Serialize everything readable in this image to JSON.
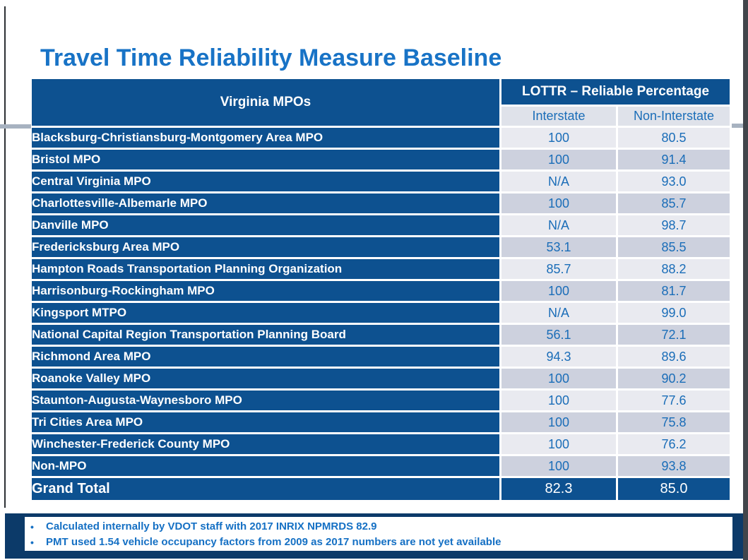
{
  "slide": {
    "title": "Travel Time Reliability Measure Baseline"
  },
  "table": {
    "col1_header": "Virginia MPOs",
    "group_header": "LOTTR – Reliable Percentage",
    "sub_headers": {
      "interstate": "Interstate",
      "non_interstate": "Non-Interstate"
    },
    "rows": [
      {
        "name": "Blacksburg-Christiansburg-Montgomery Area MPO",
        "interstate": "100",
        "non_interstate": "80.5"
      },
      {
        "name": "Bristol MPO",
        "interstate": "100",
        "non_interstate": "91.4"
      },
      {
        "name": "Central Virginia MPO",
        "interstate": "N/A",
        "non_interstate": "93.0"
      },
      {
        "name": "Charlottesville-Albemarle MPO",
        "interstate": "100",
        "non_interstate": "85.7"
      },
      {
        "name": "Danville MPO",
        "interstate": "N/A",
        "non_interstate": "98.7"
      },
      {
        "name": "Fredericksburg Area MPO",
        "interstate": "53.1",
        "non_interstate": "85.5"
      },
      {
        "name": "Hampton Roads Transportation Planning Organization",
        "interstate": "85.7",
        "non_interstate": "88.2"
      },
      {
        "name": "Harrisonburg-Rockingham MPO",
        "interstate": "100",
        "non_interstate": "81.7"
      },
      {
        "name": "Kingsport MTPO",
        "interstate": "N/A",
        "non_interstate": "99.0"
      },
      {
        "name": "National Capital Region Transportation Planning Board",
        "interstate": "56.1",
        "non_interstate": "72.1"
      },
      {
        "name": "Richmond Area MPO",
        "interstate": "94.3",
        "non_interstate": "89.6"
      },
      {
        "name": "Roanoke Valley MPO",
        "interstate": "100",
        "non_interstate": "90.2"
      },
      {
        "name": "Staunton-Augusta-Waynesboro MPO",
        "interstate": "100",
        "non_interstate": "77.6"
      },
      {
        "name": "Tri Cities Area MPO",
        "interstate": "100",
        "non_interstate": "75.8"
      },
      {
        "name": "Winchester-Frederick County MPO",
        "interstate": "100",
        "non_interstate": "76.2"
      },
      {
        "name": "Non-MPO",
        "interstate": "100",
        "non_interstate": "93.8"
      }
    ],
    "total": {
      "name": "Grand Total",
      "interstate": "82.3",
      "non_interstate": "85.0"
    }
  },
  "footnotes": [
    "Calculated internally by VDOT staff with 2017 INRIX NPMRDS 82.9",
    "PMT used 1.54 vehicle occupancy factors from 2009 as 2017 numbers are not yet available"
  ],
  "colors": {
    "table_blue": "#0d5190",
    "title_blue": "#1873c6",
    "value_text_blue": "#1a6db8",
    "row_light": "#e9eaf0",
    "row_dark": "#cdd1de",
    "subheader_bg": "#dfe2ea",
    "footer_navy": "#0c3a69",
    "accent_gray": "#a7b2c0"
  }
}
